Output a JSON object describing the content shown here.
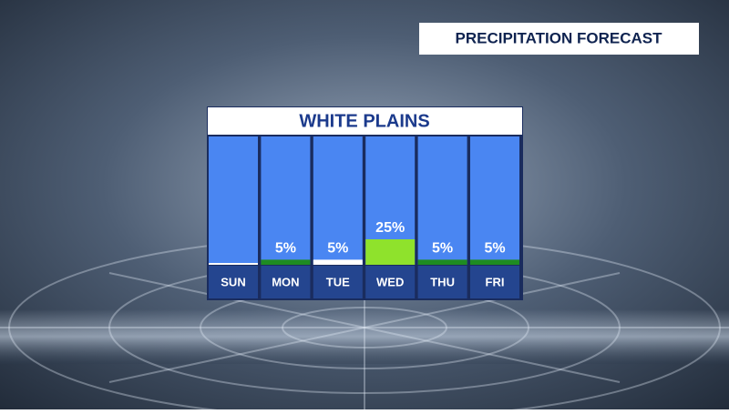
{
  "header": {
    "title": "PRECIPITATION FORECAST"
  },
  "chart_data": {
    "type": "bar",
    "title": "WHITE PLAINS",
    "categories": [
      "SUN",
      "MON",
      "TUE",
      "WED",
      "THU",
      "FRI"
    ],
    "values": [
      0,
      5,
      5,
      25,
      5,
      5
    ],
    "value_labels": [
      null,
      "5%",
      "5%",
      "25%",
      "5%",
      "5%"
    ],
    "colors": [
      "#ffffff",
      "#1e8c22",
      "#ffffff",
      "#8fe22c",
      "#1e8c22",
      "#1e8c22"
    ],
    "ylim": [
      0,
      100
    ]
  }
}
